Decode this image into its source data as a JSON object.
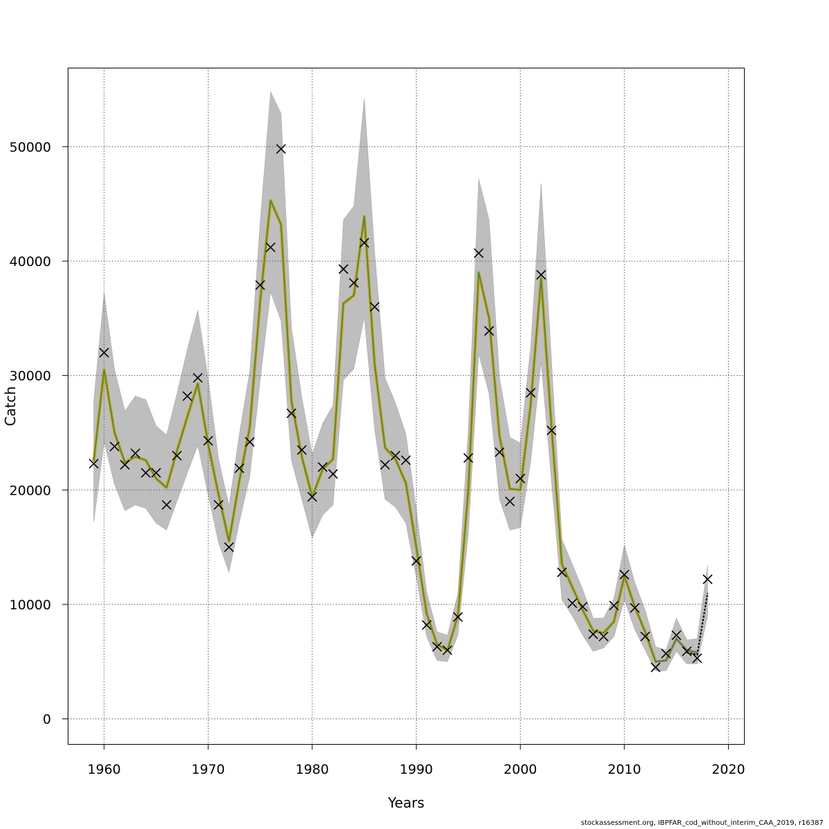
{
  "chart_data": {
    "type": "line",
    "title": "",
    "xlabel": "Years",
    "ylabel": "Catch",
    "xlim": [
      1956.5,
      2021.5
    ],
    "ylim": [
      -2200,
      56900
    ],
    "x_ticks": [
      1960,
      1970,
      1980,
      1990,
      2000,
      2010,
      2020
    ],
    "y_ticks": [
      0,
      10000,
      20000,
      30000,
      40000,
      50000
    ],
    "grid": true,
    "legend": "none",
    "colors": {
      "band": "#bebebe",
      "fit_outer": "#d4a017",
      "fit_inner": "#2e8b57",
      "recent_fit": "#1f6fd0",
      "projection": "#000000",
      "observed": "#000000",
      "grid": "#555555"
    },
    "observed": {
      "marker": "x",
      "x": [
        1959,
        1960,
        1961,
        1962,
        1963,
        1964,
        1965,
        1966,
        1967,
        1968,
        1969,
        1970,
        1971,
        1972,
        1973,
        1974,
        1975,
        1976,
        1977,
        1978,
        1979,
        1980,
        1981,
        1982,
        1983,
        1984,
        1985,
        1986,
        1987,
        1988,
        1989,
        1990,
        1991,
        1992,
        1993,
        1994,
        1995,
        1996,
        1997,
        1998,
        1999,
        2000,
        2001,
        2002,
        2003,
        2004,
        2005,
        2006,
        2007,
        2008,
        2009,
        2010,
        2011,
        2012,
        2013,
        2014,
        2015,
        2016,
        2017,
        2018
      ],
      "y": [
        22300,
        32000,
        23800,
        22200,
        23200,
        21500,
        21500,
        18700,
        23000,
        28200,
        29800,
        24300,
        18700,
        15000,
        21900,
        24200,
        37900,
        41200,
        49800,
        26700,
        23500,
        19400,
        22000,
        21400,
        39300,
        38100,
        41600,
        36000,
        22200,
        23000,
        22600,
        13800,
        8200,
        6300,
        6000,
        8900,
        22800,
        40700,
        33900,
        23300,
        19000,
        21000,
        28500,
        38800,
        25200,
        12800,
        10100,
        9800,
        7400,
        7200,
        9900,
        12600,
        9700,
        7200,
        4500,
        5700,
        7300,
        5900,
        5300,
        12200
      ]
    },
    "fitted": {
      "x": [
        1959,
        1960,
        1961,
        1962,
        1963,
        1964,
        1965,
        1966,
        1967,
        1968,
        1969,
        1970,
        1971,
        1972,
        1973,
        1974,
        1975,
        1976,
        1977,
        1978,
        1979,
        1980,
        1981,
        1982,
        1983,
        1984,
        1985,
        1986,
        1987,
        1988,
        1989,
        1990,
        1991,
        1992,
        1993,
        1994,
        1995,
        1996,
        1997,
        1998,
        1999,
        2000,
        2001,
        2002,
        2003,
        2004,
        2005,
        2006,
        2007,
        2008,
        2009,
        2010,
        2011,
        2012,
        2013,
        2014,
        2015,
        2016,
        2017
      ],
      "y": [
        22500,
        30500,
        25000,
        22400,
        22900,
        22600,
        21000,
        20200,
        23400,
        26400,
        29300,
        24000,
        19600,
        15500,
        20800,
        25500,
        36500,
        45300,
        43200,
        27800,
        22900,
        19400,
        21800,
        22700,
        36300,
        37000,
        43900,
        31000,
        23700,
        22700,
        20600,
        15000,
        9200,
        6500,
        6000,
        9000,
        20000,
        39000,
        35000,
        24700,
        20100,
        20000,
        27500,
        38500,
        25500,
        13500,
        11500,
        9500,
        7700,
        7500,
        8500,
        12500,
        9800,
        7600,
        5000,
        5100,
        7000,
        6000,
        5800
      ]
    },
    "recent_fit_x": [
      2013,
      2014,
      2015,
      2016,
      2017
    ],
    "projection": {
      "x": [
        2016,
        2017,
        2018
      ],
      "y": [
        5800,
        5600,
        11000
      ]
    },
    "band": {
      "x": [
        1959,
        1960,
        1961,
        1962,
        1963,
        1964,
        1965,
        1966,
        1967,
        1968,
        1969,
        1970,
        1971,
        1972,
        1973,
        1974,
        1975,
        1976,
        1977,
        1978,
        1979,
        1980,
        1981,
        1982,
        1983,
        1984,
        1985,
        1986,
        1987,
        1988,
        1989,
        1990,
        1991,
        1992,
        1993,
        1994,
        1995,
        1996,
        1997,
        1998,
        1999,
        2000,
        2001,
        2002,
        2003,
        2004,
        2005,
        2006,
        2007,
        2008,
        2009,
        2010,
        2011,
        2012,
        2013,
        2014,
        2015,
        2016,
        2017,
        2018
      ],
      "lower": [
        17200,
        24200,
        20500,
        18200,
        18700,
        18400,
        17100,
        16500,
        19000,
        21500,
        23900,
        19600,
        15400,
        12800,
        17200,
        21200,
        29600,
        37300,
        34800,
        22600,
        19200,
        15800,
        17800,
        18700,
        29600,
        30600,
        35100,
        25300,
        19200,
        18500,
        17100,
        12400,
        7200,
        5100,
        5000,
        7300,
        16200,
        31900,
        28400,
        19200,
        16500,
        16700,
        22500,
        31200,
        20700,
        10400,
        9000,
        7300,
        5900,
        6200,
        7200,
        10400,
        7800,
        6000,
        4200,
        4200,
        5900,
        4800,
        4800,
        9000
      ],
      "upper": [
        27800,
        37200,
        30500,
        26900,
        28200,
        27900,
        25600,
        24800,
        28400,
        32300,
        35700,
        29700,
        22700,
        18600,
        24900,
        30400,
        43400,
        54800,
        52900,
        34200,
        28100,
        23100,
        25800,
        27400,
        43600,
        44800,
        54200,
        40800,
        29800,
        27600,
        24900,
        18300,
        11100,
        7600,
        7300,
        10900,
        25300,
        47200,
        43600,
        29800,
        24600,
        24100,
        32500,
        46800,
        31200,
        15700,
        13500,
        11300,
        8800,
        8800,
        10500,
        15200,
        11900,
        9500,
        6300,
        6000,
        8800,
        6900,
        7000,
        13400
      ]
    },
    "caption": "stockassessment.org, IBPFAR_cod_without_interim_CAA_2019, r16387"
  }
}
